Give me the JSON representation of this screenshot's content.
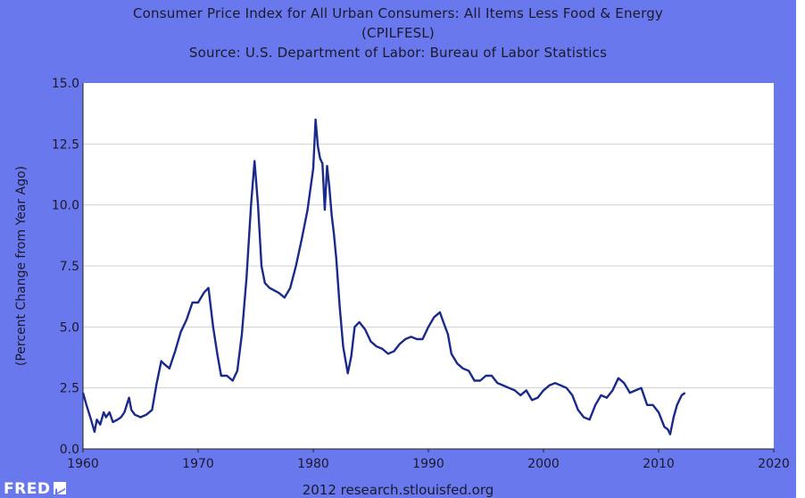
{
  "colors": {
    "background": "#6a78ee",
    "plot": "#ffffff",
    "line": "#1a2a8a",
    "grid": "#d0d0d0"
  },
  "header": {
    "title_line1": "Consumer Price Index for All Urban Consumers: All Items Less Food & Energy",
    "title_line2": "(CPILFESL)",
    "source": "Source: U.S. Department of Labor: Bureau of Labor Statistics"
  },
  "footer": {
    "logo": "FRED",
    "credit": "2012 research.stlouisfed.org"
  },
  "chart_data": {
    "type": "line",
    "title": "Consumer Price Index for All Urban Consumers: All Items Less Food & Energy (CPILFESL)",
    "xlabel": "",
    "ylabel": "(Percent Change from Year Ago)",
    "xlim": [
      1960,
      2020
    ],
    "ylim": [
      0,
      15
    ],
    "x_ticks": [
      "1960",
      "1970",
      "1980",
      "1990",
      "2000",
      "2010",
      "2020"
    ],
    "y_ticks": [
      "0.0",
      "2.5",
      "5.0",
      "7.5",
      "10.0",
      "12.5",
      "15.0"
    ],
    "grid": "horizontal",
    "legend": "none",
    "series": [
      {
        "x": [
          1960,
          1960.3,
          1960.7,
          1961.0,
          1961.2,
          1961.5,
          1961.8,
          1962.0,
          1962.3,
          1962.6,
          1963.0,
          1963.3,
          1963.6,
          1963.8,
          1964.0,
          1964.2,
          1964.5,
          1965.0,
          1965.5,
          1966.0,
          1966.4,
          1966.8,
          1967.0,
          1967.5,
          1968.0,
          1968.5,
          1969.0,
          1969.5,
          1970.0,
          1970.5,
          1970.9,
          1971.3,
          1971.7,
          1972.0,
          1972.5,
          1973.0,
          1973.4,
          1973.8,
          1974.2,
          1974.6,
          1974.9,
          1975.2,
          1975.5,
          1975.8,
          1976.2,
          1976.6,
          1977.0,
          1977.5,
          1978.0,
          1978.5,
          1979.0,
          1979.5,
          1980.0,
          1980.2,
          1980.4,
          1980.6,
          1980.8,
          1981.0,
          1981.2,
          1981.4,
          1981.6,
          1981.8,
          1982.0,
          1982.3,
          1982.6,
          1983.0,
          1983.3,
          1983.6,
          1984.0,
          1984.5,
          1985.0,
          1985.5,
          1986.0,
          1986.5,
          1987.0,
          1987.5,
          1988.0,
          1988.5,
          1989.0,
          1989.5,
          1990.0,
          1990.5,
          1991.0,
          1991.3,
          1991.7,
          1992.0,
          1992.5,
          1993.0,
          1993.5,
          1994.0,
          1994.5,
          1995.0,
          1995.5,
          1996.0,
          1996.5,
          1997.0,
          1997.5,
          1998.0,
          1998.5,
          1999.0,
          1999.5,
          2000.0,
          2000.5,
          2001.0,
          2001.5,
          2002.0,
          2002.5,
          2003.0,
          2003.5,
          2004.0,
          2004.5,
          2005.0,
          2005.5,
          2006.0,
          2006.5,
          2007.0,
          2007.5,
          2008.0,
          2008.5,
          2009.0,
          2009.5,
          2010.0,
          2010.5,
          2010.8,
          2011.0,
          2011.3,
          2011.6,
          2012.0,
          2012.3
        ],
        "y": [
          2.3,
          1.8,
          1.2,
          0.7,
          1.2,
          1.0,
          1.5,
          1.3,
          1.5,
          1.1,
          1.2,
          1.3,
          1.5,
          1.8,
          2.1,
          1.6,
          1.4,
          1.3,
          1.4,
          1.6,
          2.7,
          3.6,
          3.5,
          3.3,
          4.0,
          4.8,
          5.3,
          6.0,
          6.0,
          6.4,
          6.6,
          5.0,
          3.8,
          3.0,
          3.0,
          2.8,
          3.2,
          4.7,
          7.0,
          10.0,
          11.8,
          10.0,
          7.5,
          6.8,
          6.6,
          6.5,
          6.4,
          6.2,
          6.6,
          7.5,
          8.6,
          9.8,
          11.5,
          13.5,
          12.4,
          11.9,
          11.7,
          9.8,
          11.6,
          10.7,
          9.6,
          8.8,
          7.8,
          5.8,
          4.2,
          3.1,
          3.8,
          5.0,
          5.2,
          4.9,
          4.4,
          4.2,
          4.1,
          3.9,
          4.0,
          4.3,
          4.5,
          4.6,
          4.5,
          4.5,
          5.0,
          5.4,
          5.6,
          5.2,
          4.7,
          3.9,
          3.5,
          3.3,
          3.2,
          2.8,
          2.8,
          3.0,
          3.0,
          2.7,
          2.6,
          2.5,
          2.4,
          2.2,
          2.4,
          2.0,
          2.1,
          2.4,
          2.6,
          2.7,
          2.6,
          2.5,
          2.2,
          1.6,
          1.3,
          1.2,
          1.8,
          2.2,
          2.1,
          2.4,
          2.9,
          2.7,
          2.3,
          2.4,
          2.5,
          1.8,
          1.8,
          1.5,
          0.9,
          0.8,
          0.6,
          1.3,
          1.8,
          2.2,
          2.3
        ]
      }
    ]
  }
}
